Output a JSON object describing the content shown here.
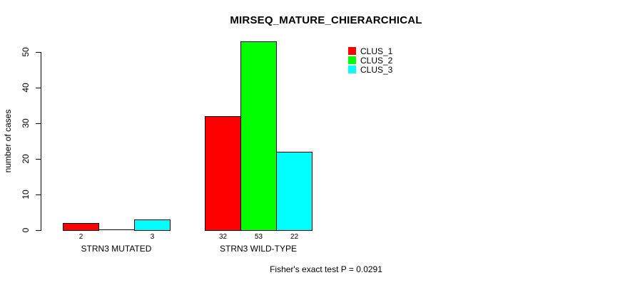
{
  "chart_data": {
    "type": "bar",
    "title": "MIRSEQ_MATURE_CHIERARCHICAL",
    "ylabel": "number of cases",
    "xlabel": "",
    "ylim": [
      0,
      50
    ],
    "yticks": [
      0,
      10,
      20,
      30,
      40,
      50
    ],
    "grid": false,
    "background_color": "#ffffff",
    "bar_border_color": "#000000",
    "categories": [
      "STRN3 MUTATED",
      "STRN3 WILD-TYPE"
    ],
    "series": [
      {
        "name": "CLUS_1",
        "color": "#ff0000",
        "values": [
          2,
          32
        ]
      },
      {
        "name": "CLUS_2",
        "color": "#00ff00",
        "values": [
          0,
          53
        ]
      },
      {
        "name": "CLUS_3",
        "color": "#00ffff",
        "values": [
          3,
          22
        ]
      }
    ],
    "bar_value_labels": [
      [
        "2",
        "",
        "3"
      ],
      [
        "32",
        "53",
        "22"
      ]
    ],
    "legend": {
      "position": "top-right-inside",
      "entries": [
        "CLUS_1",
        "CLUS_2",
        "CLUS_3"
      ]
    },
    "annotation": "Fisher's exact test P = 0.0291"
  }
}
